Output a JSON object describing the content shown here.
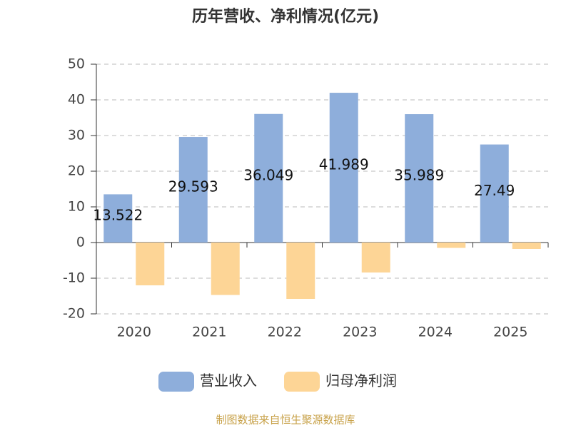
{
  "chart_data": {
    "type": "bar",
    "title": "历年营收、净利情况(亿元)",
    "categories": [
      "2020",
      "2021",
      "2022",
      "2023",
      "2024",
      "2025"
    ],
    "series": [
      {
        "name": "营业收入",
        "color": "#8eaedb",
        "values": [
          13.522,
          29.593,
          36.049,
          41.989,
          35.989,
          27.49
        ],
        "show_labels": true
      },
      {
        "name": "归母净利润",
        "color": "#fdd596",
        "values": [
          -12.0,
          -14.7,
          -15.8,
          -8.4,
          -1.5,
          -1.8
        ],
        "show_labels": false
      }
    ],
    "ylim": [
      -20,
      50
    ],
    "yticks": [
      -20,
      -10,
      0,
      10,
      20,
      30,
      40,
      50
    ],
    "grid": true,
    "legend": "bottom",
    "source": "制图数据来自恒生聚源数据库"
  }
}
